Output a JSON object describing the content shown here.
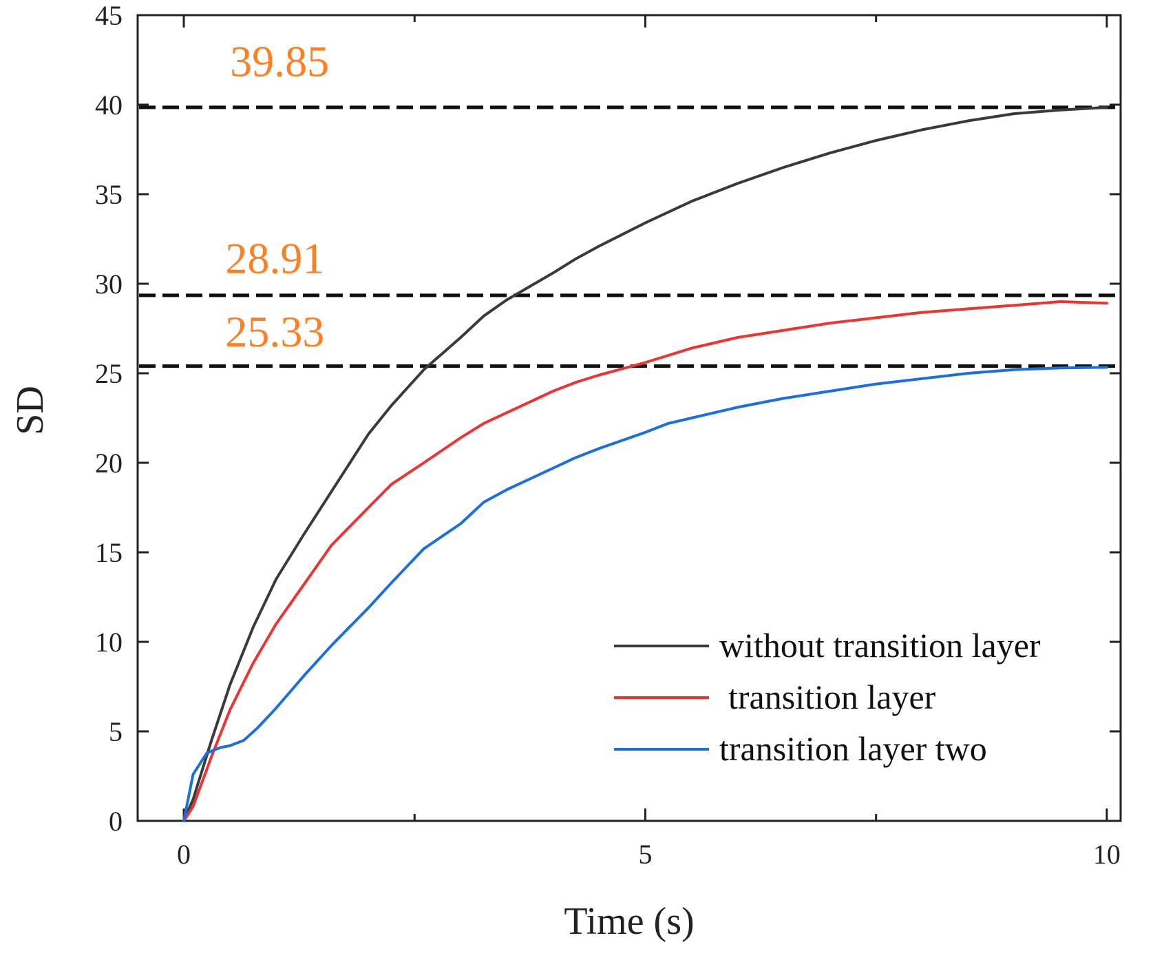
{
  "chart_data": {
    "type": "line",
    "title": "",
    "xlabel": "Time (s)",
    "ylabel": "SD",
    "xlim": [
      -0.5,
      10.15
    ],
    "ylim": [
      0,
      45
    ],
    "xticks": [
      0,
      5,
      10
    ],
    "xminor": [
      2.5,
      7.5
    ],
    "yticks": [
      0,
      5,
      10,
      15,
      20,
      25,
      30,
      35,
      40,
      45
    ],
    "grid": false,
    "legend_position": "bottom-right",
    "series": [
      {
        "name": "without transition layer",
        "color": "#3a3a3a",
        "x": [
          0,
          0.1,
          0.3,
          0.5,
          0.75,
          1.0,
          1.3,
          1.6,
          2.0,
          2.25,
          2.6,
          3.0,
          3.25,
          3.5,
          4.0,
          4.25,
          4.5,
          5.0,
          5.5,
          6.0,
          6.5,
          7.0,
          7.5,
          8.0,
          8.5,
          9.0,
          9.5,
          10.0
        ],
        "y": [
          0,
          1.2,
          4.5,
          7.6,
          10.8,
          13.5,
          16.0,
          18.4,
          21.6,
          23.2,
          25.2,
          27.0,
          28.2,
          29.1,
          30.6,
          31.4,
          32.1,
          33.4,
          34.6,
          35.6,
          36.5,
          37.3,
          38.0,
          38.6,
          39.1,
          39.5,
          39.7,
          39.85
        ]
      },
      {
        "name": "transition layer",
        "color": "#ee3333",
        "x": [
          0,
          0.1,
          0.3,
          0.5,
          0.75,
          1.0,
          1.3,
          1.6,
          2.0,
          2.25,
          2.6,
          3.0,
          3.25,
          3.5,
          4.0,
          4.25,
          4.5,
          5.0,
          5.25,
          5.5,
          6.0,
          6.5,
          7.0,
          7.5,
          8.0,
          8.5,
          9.0,
          9.5,
          10.0
        ],
        "y": [
          0,
          0.8,
          3.6,
          6.2,
          8.8,
          11.0,
          13.2,
          15.4,
          17.5,
          18.8,
          20.0,
          21.4,
          22.2,
          22.8,
          24.0,
          24.5,
          24.9,
          25.6,
          26.0,
          26.4,
          27.0,
          27.4,
          27.8,
          28.1,
          28.4,
          28.6,
          28.8,
          29.0,
          28.91
        ]
      },
      {
        "name": "transition layer two",
        "color": "#1b6fe0",
        "x": [
          0,
          0.1,
          0.25,
          0.4,
          0.5,
          0.65,
          0.8,
          1.0,
          1.3,
          1.6,
          2.0,
          2.25,
          2.6,
          3.0,
          3.25,
          3.5,
          4.0,
          4.25,
          4.5,
          5.0,
          5.25,
          5.5,
          6.0,
          6.5,
          7.0,
          7.5,
          8.0,
          8.5,
          9.0,
          9.5,
          10.0
        ],
        "y": [
          0,
          2.6,
          3.8,
          4.1,
          4.2,
          4.5,
          5.2,
          6.3,
          8.1,
          9.8,
          11.9,
          13.3,
          15.2,
          16.6,
          17.8,
          18.5,
          19.7,
          20.3,
          20.8,
          21.7,
          22.2,
          22.5,
          23.1,
          23.6,
          24.0,
          24.4,
          24.7,
          25.0,
          25.2,
          25.3,
          25.33
        ]
      }
    ],
    "reference_lines": [
      {
        "y": 39.85,
        "label": "39.85",
        "label_color": "#ff7f24",
        "label_x": 0.5,
        "label_y": 41.6
      },
      {
        "y": 29.35,
        "label": "28.91",
        "label_color": "#ff7f24",
        "label_x": 0.45,
        "label_y": 30.6
      },
      {
        "y": 25.4,
        "label": "25.33",
        "label_color": "#ff7f24",
        "label_x": 0.45,
        "label_y": 26.5
      }
    ]
  }
}
